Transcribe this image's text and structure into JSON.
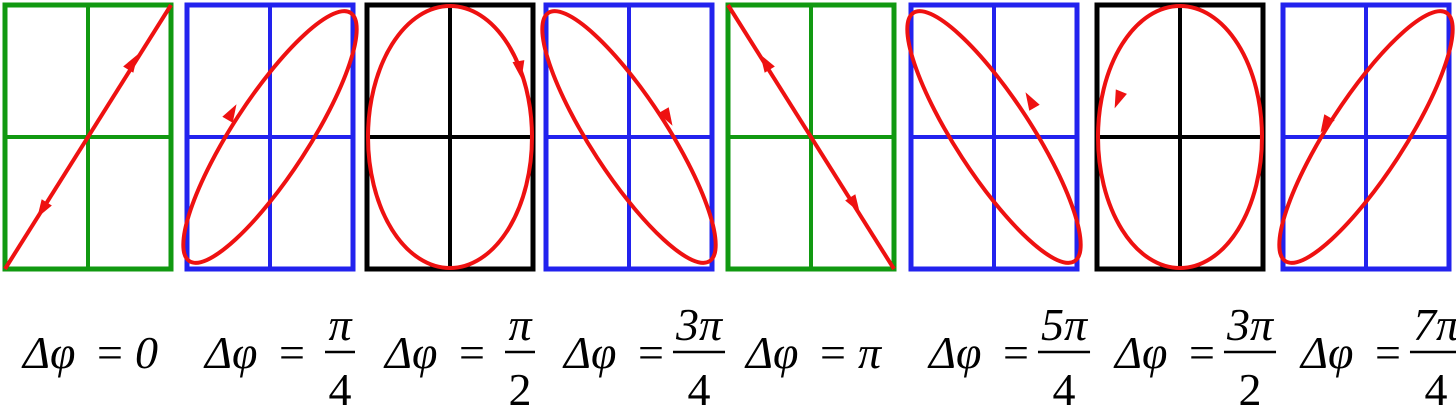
{
  "lhs": "Δφ",
  "equals": "=",
  "panels": [
    {
      "value": "0"
    },
    {
      "numerator": "π",
      "denominator": "4"
    },
    {
      "numerator": "π",
      "denominator": "2"
    },
    {
      "numerator": "3π",
      "denominator": "4"
    },
    {
      "value": "π"
    },
    {
      "numerator": "5π",
      "denominator": "4"
    },
    {
      "numerator": "3π",
      "denominator": "2"
    },
    {
      "numerator": "7π",
      "denominator": "4"
    }
  ]
}
